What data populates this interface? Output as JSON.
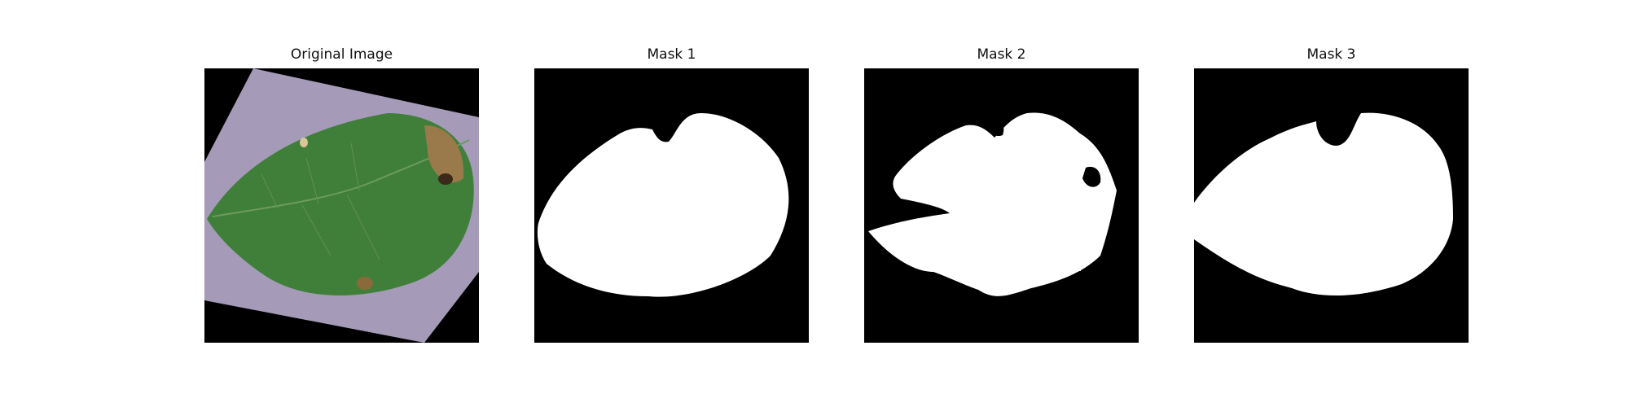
{
  "panels": [
    {
      "title": "Original Image"
    },
    {
      "title": "Mask 1"
    },
    {
      "title": "Mask 2"
    },
    {
      "title": "Mask 3"
    }
  ],
  "colors": {
    "page_background": "#ffffff",
    "mask_background": "#000000",
    "mask_foreground": "#ffffff",
    "leaf_green": "#3f7f3a",
    "leaf_dark_green": "#2f6a2f",
    "lesion_brown": "#9a7a4a",
    "backdrop_lavender": "#a59ab7"
  }
}
